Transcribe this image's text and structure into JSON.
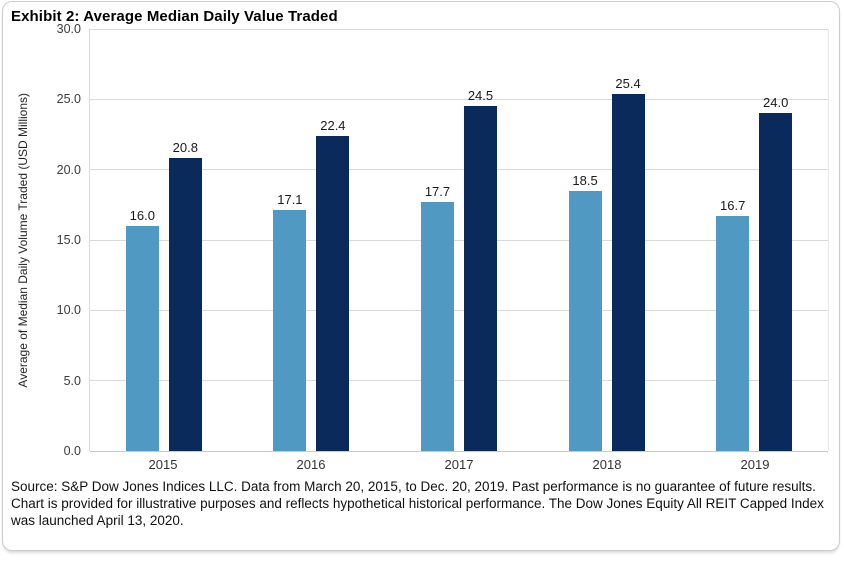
{
  "title": "Exhibit 2: Average Median Daily Value Traded",
  "chart_data": {
    "type": "bar",
    "title": "Exhibit 2: Average Median Daily Value Traded",
    "categories": [
      "2015",
      "2016",
      "2017",
      "2018",
      "2019"
    ],
    "series": [
      {
        "color": "#5099C3",
        "values": [
          16.0,
          17.1,
          17.7,
          18.5,
          16.7
        ]
      },
      {
        "color": "#0A2A5C",
        "values": [
          20.8,
          22.4,
          24.5,
          25.4,
          24.0
        ]
      }
    ],
    "xlabel": "",
    "ylabel": "Average of Median Daily Volume Traded (USD Millions)",
    "ylim": [
      0,
      30
    ],
    "yticks": [
      "0.0",
      "5.0",
      "10.0",
      "15.0",
      "20.0",
      "25.0",
      "30.0"
    ],
    "grid": true,
    "legend_position": "none",
    "value_labels": true
  },
  "colors": {
    "series_light_blue": "#5099C3",
    "series_dark_navy": "#0A2A5C",
    "gridline": "#D9D9D9",
    "card_border": "#CCCCCC"
  },
  "footer": "Source: S&P Dow Jones Indices LLC. Data from March 20, 2015, to Dec. 20, 2019. Past performance is no guarantee of future results. Chart is provided for illustrative purposes and reflects hypothetical historical performance. The Dow Jones Equity All REIT Capped Index was launched April 13, 2020."
}
